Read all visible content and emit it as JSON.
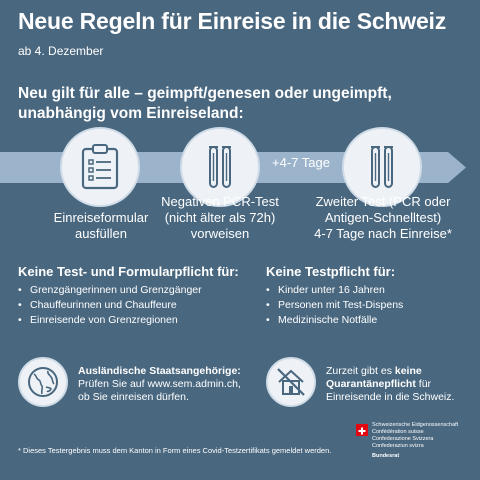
{
  "header": {
    "title": "Neue Regeln für Einreise in die Schweiz",
    "date": "ab 4. Dezember"
  },
  "subtitle": {
    "line1": "Neu gilt für alle – geimpft/genesen oder ungeimpft,",
    "line2": "unabhängig vom Einreiseland:"
  },
  "steps": [
    {
      "icon": "clipboard-icon",
      "lines": [
        "Einreiseformular",
        "ausfüllen"
      ]
    },
    {
      "icon": "test-tubes-icon",
      "lines": [
        "Negativen PCR-Test",
        "(nicht älter als 72h)",
        "vorweisen"
      ]
    },
    {
      "icon": "test-tubes-icon",
      "lines": [
        "Zweiter Test (PCR oder",
        "Antigen-Schnelltest)",
        "4-7 Tage nach Einreise*"
      ]
    }
  ],
  "interval_label": "+4-7 Tage",
  "left_column": {
    "heading": "Keine Test- und Formularpflicht für:",
    "items": [
      "Grenzgängerinnen und Grenzgänger",
      "Chauffeurinnen und Chauffeure",
      "Einreisende von Grenzregionen"
    ]
  },
  "right_column": {
    "heading": "Keine Testpflicht für:",
    "items": [
      "Kinder unter 16 Jahren",
      "Personen mit Test-Dispens",
      "Medizinische Notfälle"
    ]
  },
  "info_foreign": {
    "icon": "globe-icon",
    "bold": "Ausländische Staatsangehörige:",
    "line1": "Prüfen Sie auf www.sem.admin.ch,",
    "line2": "ob Sie einreisen dürfen."
  },
  "info_quarantine": {
    "icon": "house-crossed-icon",
    "pre": "Zurzeit gibt es ",
    "bold1": "keine",
    "bold2": "Quarantänepflicht",
    "post1": " für",
    "line3": "Einreisende in die Schweiz."
  },
  "footnote": "* Dieses Testergebnis muss dem Kanton in Form eines Covid-Testzertifikats gemeldet werden.",
  "federal": {
    "lines": [
      "Schweizerische Eidgenossenschaft",
      "Confédération suisse",
      "Confederazione Svizzera",
      "Confederaziun svizra"
    ],
    "dept": "Bundesrat"
  },
  "colors": {
    "background": "#49677f",
    "band": "#a9c2d8",
    "circle": "#eef2f6",
    "icon": "#49677f",
    "flag": "#e30613"
  }
}
